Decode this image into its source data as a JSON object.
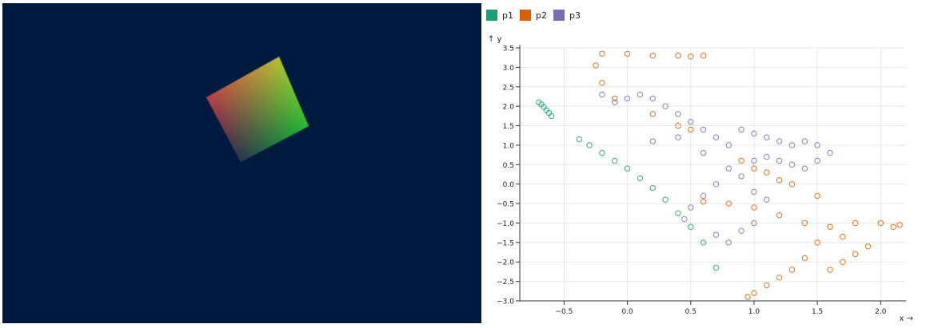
{
  "left_canvas": {
    "background": "#001a3f",
    "quad_colors": {
      "top_left": "#ff4d4d",
      "top_right": "#ffff33",
      "bottom_right": "#33ff33",
      "bottom_left": "#334455"
    }
  },
  "chart_data": {
    "type": "scatter",
    "xlabel": "x",
    "ylabel": "y",
    "x_axis_arrow": "→",
    "y_axis_arrow": "↑",
    "xlim": [
      -0.85,
      2.2
    ],
    "ylim": [
      -3.0,
      3.5
    ],
    "x_ticks": [
      -0.5,
      0.0,
      0.5,
      1.0,
      1.5,
      2.0
    ],
    "y_ticks": [
      -3.0,
      -2.5,
      -2.0,
      -1.5,
      -1.0,
      -0.5,
      0.0,
      0.5,
      1.0,
      1.5,
      2.0,
      2.5,
      3.0,
      3.5
    ],
    "x_tick_labels": [
      "−0.5",
      "0.0",
      "0.5",
      "1.0",
      "1.5",
      "2.0"
    ],
    "y_tick_labels": [
      "−3.0",
      "−2.5",
      "−2.0",
      "−1.5",
      "−1.0",
      "−0.5",
      "0.0",
      "0.5",
      "1.0",
      "1.5",
      "2.0",
      "2.5",
      "3.0",
      "3.5"
    ],
    "grid": true,
    "legend_position": "top-left",
    "series": [
      {
        "name": "p1",
        "color": "#1b9e77",
        "points": [
          [
            -0.7,
            2.1
          ],
          [
            -0.68,
            2.05
          ],
          [
            -0.66,
            1.98
          ],
          [
            -0.64,
            1.9
          ],
          [
            -0.62,
            1.83
          ],
          [
            -0.6,
            1.75
          ],
          [
            -0.38,
            1.15
          ],
          [
            -0.3,
            1.0
          ],
          [
            -0.2,
            0.8
          ],
          [
            -0.1,
            0.6
          ],
          [
            0.0,
            0.4
          ],
          [
            0.1,
            0.15
          ],
          [
            0.2,
            -0.1
          ],
          [
            0.3,
            -0.4
          ],
          [
            0.4,
            -0.75
          ],
          [
            0.5,
            -1.1
          ],
          [
            0.6,
            -1.5
          ],
          [
            0.7,
            -2.15
          ]
        ]
      },
      {
        "name": "p2",
        "color": "#d95f02",
        "points": [
          [
            -0.2,
            3.35
          ],
          [
            0.0,
            3.35
          ],
          [
            0.2,
            3.3
          ],
          [
            0.4,
            3.3
          ],
          [
            0.5,
            3.28
          ],
          [
            0.6,
            3.3
          ],
          [
            -0.25,
            3.05
          ],
          [
            -0.2,
            2.6
          ],
          [
            -0.1,
            2.2
          ],
          [
            0.2,
            1.8
          ],
          [
            0.4,
            1.5
          ],
          [
            0.5,
            1.4
          ],
          [
            0.9,
            0.6
          ],
          [
            1.0,
            0.4
          ],
          [
            1.1,
            0.3
          ],
          [
            1.2,
            0.1
          ],
          [
            1.3,
            0.0
          ],
          [
            1.5,
            -0.3
          ],
          [
            0.6,
            -0.45
          ],
          [
            0.8,
            -0.5
          ],
          [
            1.0,
            -0.6
          ],
          [
            1.2,
            -0.8
          ],
          [
            1.4,
            -1.0
          ],
          [
            1.6,
            -1.1
          ],
          [
            1.8,
            -1.0
          ],
          [
            2.0,
            -1.0
          ],
          [
            2.1,
            -1.1
          ],
          [
            2.15,
            -1.05
          ],
          [
            1.7,
            -1.35
          ],
          [
            1.5,
            -1.5
          ],
          [
            1.4,
            -1.9
          ],
          [
            1.3,
            -2.2
          ],
          [
            1.2,
            -2.4
          ],
          [
            1.1,
            -2.6
          ],
          [
            1.0,
            -2.8
          ],
          [
            0.95,
            -2.9
          ],
          [
            1.6,
            -2.2
          ],
          [
            1.7,
            -2.0
          ],
          [
            1.8,
            -1.8
          ],
          [
            1.9,
            -1.6
          ]
        ]
      },
      {
        "name": "p3",
        "color": "#7570b3",
        "points": [
          [
            -0.2,
            2.3
          ],
          [
            -0.1,
            2.1
          ],
          [
            0.0,
            2.2
          ],
          [
            0.1,
            2.3
          ],
          [
            0.2,
            2.2
          ],
          [
            0.3,
            2.0
          ],
          [
            0.4,
            1.8
          ],
          [
            0.5,
            1.6
          ],
          [
            0.6,
            1.4
          ],
          [
            0.7,
            1.2
          ],
          [
            0.8,
            1.0
          ],
          [
            0.9,
            1.4
          ],
          [
            1.0,
            1.3
          ],
          [
            1.1,
            1.2
          ],
          [
            1.2,
            1.1
          ],
          [
            1.3,
            1.0
          ],
          [
            1.4,
            1.1
          ],
          [
            1.5,
            1.0
          ],
          [
            1.6,
            0.8
          ],
          [
            1.5,
            0.6
          ],
          [
            1.4,
            0.4
          ],
          [
            1.3,
            0.5
          ],
          [
            1.2,
            0.6
          ],
          [
            1.1,
            0.7
          ],
          [
            1.0,
            0.6
          ],
          [
            0.9,
            0.2
          ],
          [
            0.7,
            0.0
          ],
          [
            0.6,
            -0.3
          ],
          [
            0.5,
            -0.6
          ],
          [
            0.45,
            -0.9
          ],
          [
            0.7,
            -1.3
          ],
          [
            0.8,
            -1.5
          ],
          [
            0.9,
            -1.2
          ],
          [
            1.0,
            -1.0
          ],
          [
            1.1,
            -0.4
          ],
          [
            1.0,
            -0.2
          ],
          [
            0.8,
            0.4
          ],
          [
            0.6,
            0.8
          ],
          [
            0.4,
            1.2
          ],
          [
            0.2,
            1.1
          ]
        ]
      }
    ]
  }
}
